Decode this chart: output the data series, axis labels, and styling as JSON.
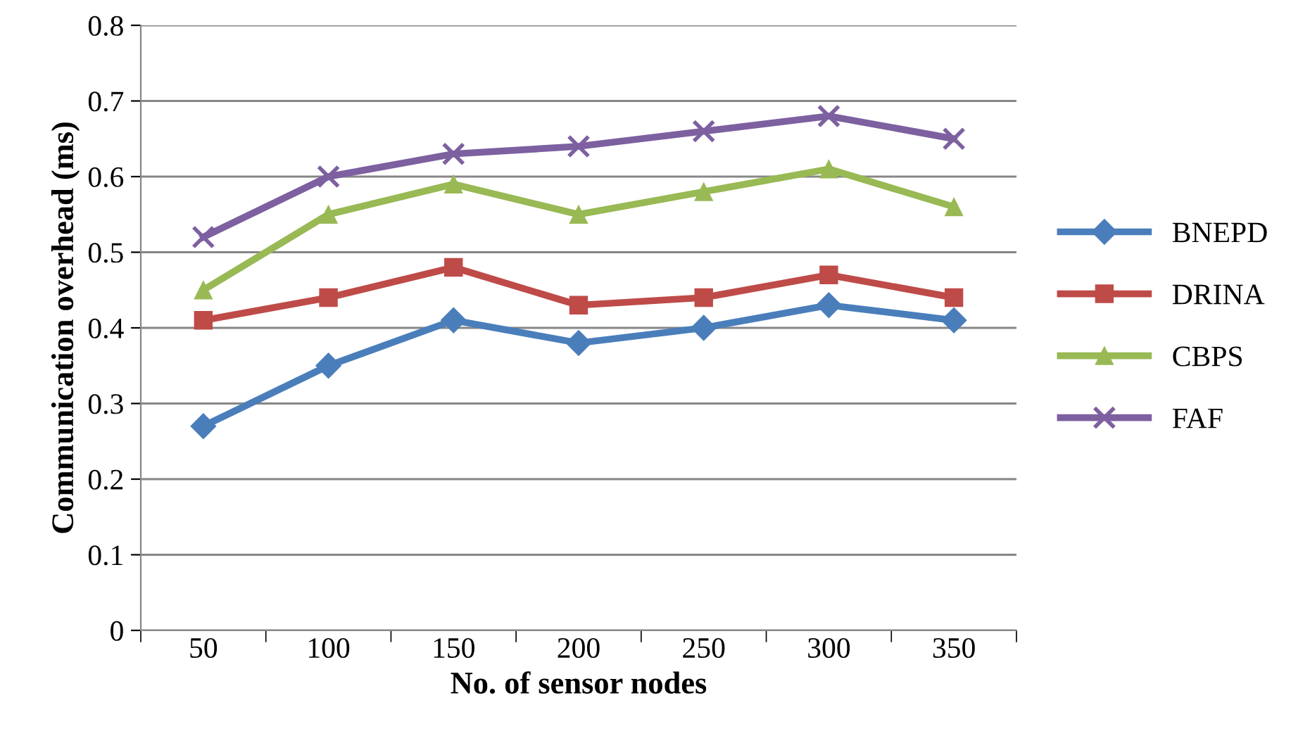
{
  "chart_data": {
    "type": "line",
    "xlabel": "No. of sensor nodes",
    "ylabel": "Communication overhead (ms)",
    "categories": [
      "50",
      "100",
      "150",
      "200",
      "250",
      "300",
      "350"
    ],
    "series": [
      {
        "name": "BNEPD",
        "color": "#4a7ebb",
        "marker": "diamond",
        "values": [
          0.27,
          0.35,
          0.41,
          0.38,
          0.4,
          0.43,
          0.41
        ]
      },
      {
        "name": "DRINA",
        "color": "#be4b48",
        "marker": "square",
        "values": [
          0.41,
          0.44,
          0.48,
          0.43,
          0.44,
          0.47,
          0.44
        ]
      },
      {
        "name": "CBPS",
        "color": "#98b954",
        "marker": "triangle",
        "values": [
          0.45,
          0.55,
          0.59,
          0.55,
          0.58,
          0.61,
          0.56
        ]
      },
      {
        "name": "FAF",
        "color": "#7d60a0",
        "marker": "cross",
        "values": [
          0.52,
          0.6,
          0.63,
          0.64,
          0.66,
          0.68,
          0.65
        ]
      }
    ],
    "ylim": [
      0,
      0.8
    ],
    "yticks": [
      {
        "value": 0,
        "label": "0"
      },
      0.1,
      0.2,
      0.3,
      0.4,
      0.5,
      0.6,
      0.7,
      0.8
    ],
    "grid": "y",
    "legend": "right",
    "line_style": "solid"
  }
}
